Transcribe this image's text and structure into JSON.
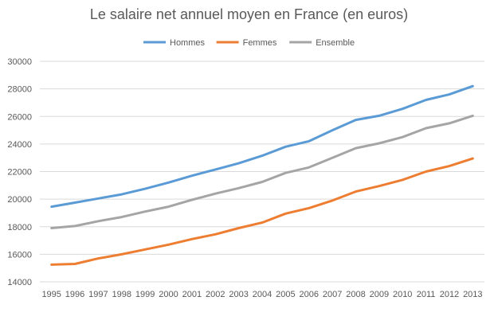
{
  "chart_data": {
    "type": "line",
    "title": "Le salaire net annuel moyen en France (en euros)",
    "xlabel": "",
    "ylabel": "",
    "ylim": [
      14000,
      30000
    ],
    "yticks": [
      14000,
      16000,
      18000,
      20000,
      22000,
      24000,
      26000,
      28000,
      30000
    ],
    "grid": "horizontal",
    "legend_position": "top",
    "categories": [
      "1995",
      "1996",
      "1997",
      "1998",
      "1999",
      "2000",
      "2001",
      "2002",
      "2003",
      "2004",
      "2005",
      "2006",
      "2007",
      "2008",
      "2009",
      "2010",
      "2011",
      "2012",
      "2013"
    ],
    "series": [
      {
        "name": "Hommes",
        "color": "#5b9bd5",
        "values": [
          19450,
          19750,
          20050,
          20350,
          20750,
          21200,
          21700,
          22150,
          22600,
          23150,
          23800,
          24200,
          25000,
          25750,
          26050,
          26550,
          27200,
          27600,
          28200
        ]
      },
      {
        "name": "Femmes",
        "color": "#ed7d31",
        "values": [
          15250,
          15300,
          15700,
          16000,
          16350,
          16700,
          17100,
          17450,
          17900,
          18300,
          18950,
          19350,
          19900,
          20550,
          20950,
          21400,
          22000,
          22400,
          22950
        ]
      },
      {
        "name": "Ensemble",
        "color": "#a5a5a5",
        "values": [
          17900,
          18050,
          18400,
          18700,
          19100,
          19450,
          19950,
          20400,
          20800,
          21250,
          21900,
          22300,
          23000,
          23700,
          24050,
          24500,
          25150,
          25500,
          26050
        ]
      }
    ]
  }
}
